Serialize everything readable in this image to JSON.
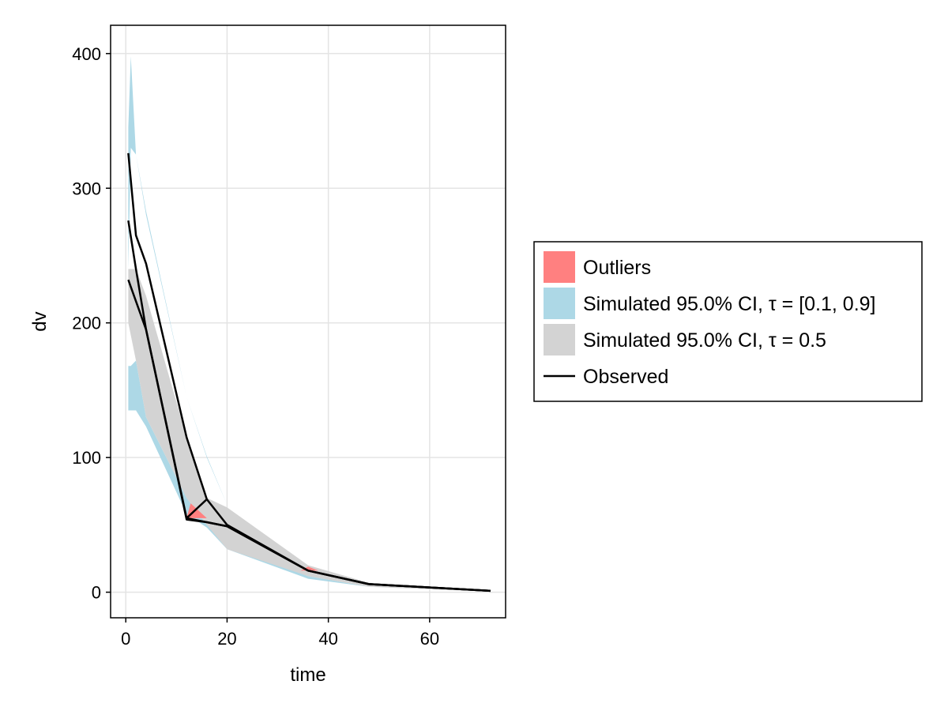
{
  "chart_data": {
    "type": "area",
    "xlabel": "time",
    "ylabel": "dv",
    "xlim": [
      -3,
      75
    ],
    "ylim": [
      -19,
      421
    ],
    "xticks": [
      0,
      20,
      40,
      60
    ],
    "yticks": [
      0,
      100,
      200,
      300,
      400
    ],
    "grid": true,
    "legend_position": "right",
    "colors": {
      "outliers": "#ff8080",
      "ci_outer": "#add8e6",
      "ci_median": "#d3d3d3",
      "observed": "#000000"
    },
    "legend": [
      {
        "key": "outliers",
        "label": "Outliers",
        "kind": "patch"
      },
      {
        "key": "ci_outer",
        "label": "Simulated 95.0% CI, τ = [0.1, 0.9]",
        "kind": "patch"
      },
      {
        "key": "ci_median",
        "label": "Simulated 95.0% CI, τ = 0.5",
        "kind": "patch"
      },
      {
        "key": "observed",
        "label": "Observed",
        "kind": "line"
      }
    ],
    "series": [
      {
        "name": "Simulated 95.0% CI, τ = [0.1, 0.9]",
        "kind": "band",
        "color_key": "ci_outer",
        "bands": [
          {
            "x": [
              0.5,
              1,
              2,
              4,
              12,
              16,
              20,
              36,
              48,
              72
            ],
            "lower": [
              240,
              330,
              325,
              280,
              145,
              100,
              65,
              20,
              6,
              1
            ],
            "upper": [
              345,
              398,
              325,
              283,
              145,
              101,
              65,
              20,
              6,
              1
            ]
          },
          {
            "x": [
              0.5,
              1,
              2,
              4,
              12,
              16,
              20,
              36,
              48,
              72
            ],
            "lower": [
              135,
              135,
              135,
              123,
              58,
              48,
              32,
              10,
              4,
              0.5
            ],
            "upper": [
              168,
              168,
              172,
              130,
              70,
              50,
              35,
              12,
              4,
              0.5
            ]
          }
        ]
      },
      {
        "name": "Simulated 95.0% CI, τ = 0.5",
        "kind": "band",
        "color_key": "ci_median",
        "x": [
          0.5,
          2,
          4,
          12,
          16,
          20,
          36,
          48,
          72
        ],
        "lower": [
          200,
          172,
          130,
          70,
          50,
          32,
          12,
          4,
          0.5
        ],
        "upper": [
          240,
          240,
          220,
          115,
          70,
          63,
          20,
          7,
          1.5
        ]
      },
      {
        "name": "Outliers",
        "kind": "polygons",
        "color_key": "outliers",
        "polygons": [
          {
            "x": [
              12,
              12.8,
              16,
              12
            ],
            "y": [
              55,
              66,
              55,
              55
            ]
          },
          {
            "x": [
              34.5,
              36,
              38
            ],
            "y": [
              16,
              19,
              16
            ]
          }
        ]
      },
      {
        "name": "Observed",
        "kind": "lines",
        "color_key": "observed",
        "lines": [
          {
            "x": [
              0.5,
              2,
              4,
              12,
              16,
              20,
              36,
              48,
              72
            ],
            "y": [
              326,
              265,
              244,
              115,
              69,
              50,
              16,
              6,
              1
            ]
          },
          {
            "x": [
              0.5,
              2,
              4,
              12,
              20,
              36,
              48,
              72
            ],
            "y": [
              276,
              240,
              195,
              55,
              49,
              16,
              6,
              1
            ]
          },
          {
            "x": [
              0.5,
              4,
              12,
              16,
              20,
              36,
              48,
              72
            ],
            "y": [
              232,
              195,
              54,
              52,
              49,
              16,
              6,
              1
            ]
          },
          {
            "x": [
              12,
              16
            ],
            "y": [
              55,
              69
            ]
          }
        ]
      }
    ]
  }
}
